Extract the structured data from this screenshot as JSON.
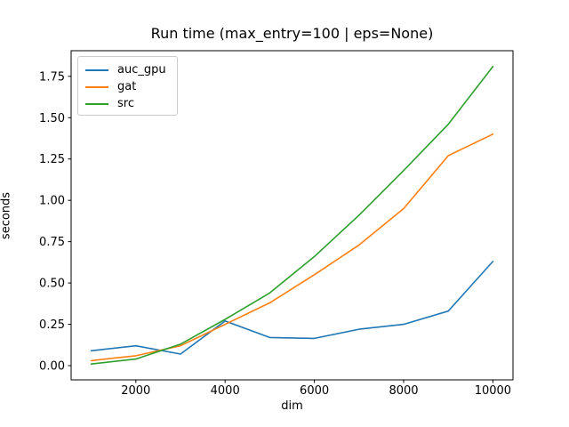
{
  "chart_data": {
    "type": "line",
    "title": "Run time (max_entry=100 | eps=None)",
    "xlabel": "dim",
    "ylabel": "seconds",
    "x": [
      1000,
      2000,
      3000,
      4000,
      5000,
      6000,
      7000,
      8000,
      9000,
      10000
    ],
    "series": [
      {
        "name": "auc_gpu",
        "color": "#1f77b4",
        "values": [
          0.09,
          0.12,
          0.07,
          0.27,
          0.17,
          0.165,
          0.22,
          0.25,
          0.33,
          0.63
        ]
      },
      {
        "name": "gat",
        "color": "#ff7f0e",
        "values": [
          0.03,
          0.06,
          0.12,
          0.25,
          0.38,
          0.55,
          0.73,
          0.95,
          1.27,
          1.4
        ]
      },
      {
        "name": "src",
        "color": "#2ca02c",
        "values": [
          0.01,
          0.04,
          0.13,
          0.28,
          0.44,
          0.66,
          0.91,
          1.18,
          1.46,
          1.81
        ]
      }
    ],
    "xticks": [
      2000,
      4000,
      6000,
      8000,
      10000
    ],
    "yticks": [
      0.0,
      0.25,
      0.5,
      0.75,
      1.0,
      1.25,
      1.5,
      1.75
    ],
    "xlim": [
      550,
      10450
    ],
    "ylim": [
      -0.086,
      1.905
    ],
    "grid": false,
    "legend_position": "upper left",
    "axis_color": "#000000",
    "background_color": "#ffffff"
  }
}
